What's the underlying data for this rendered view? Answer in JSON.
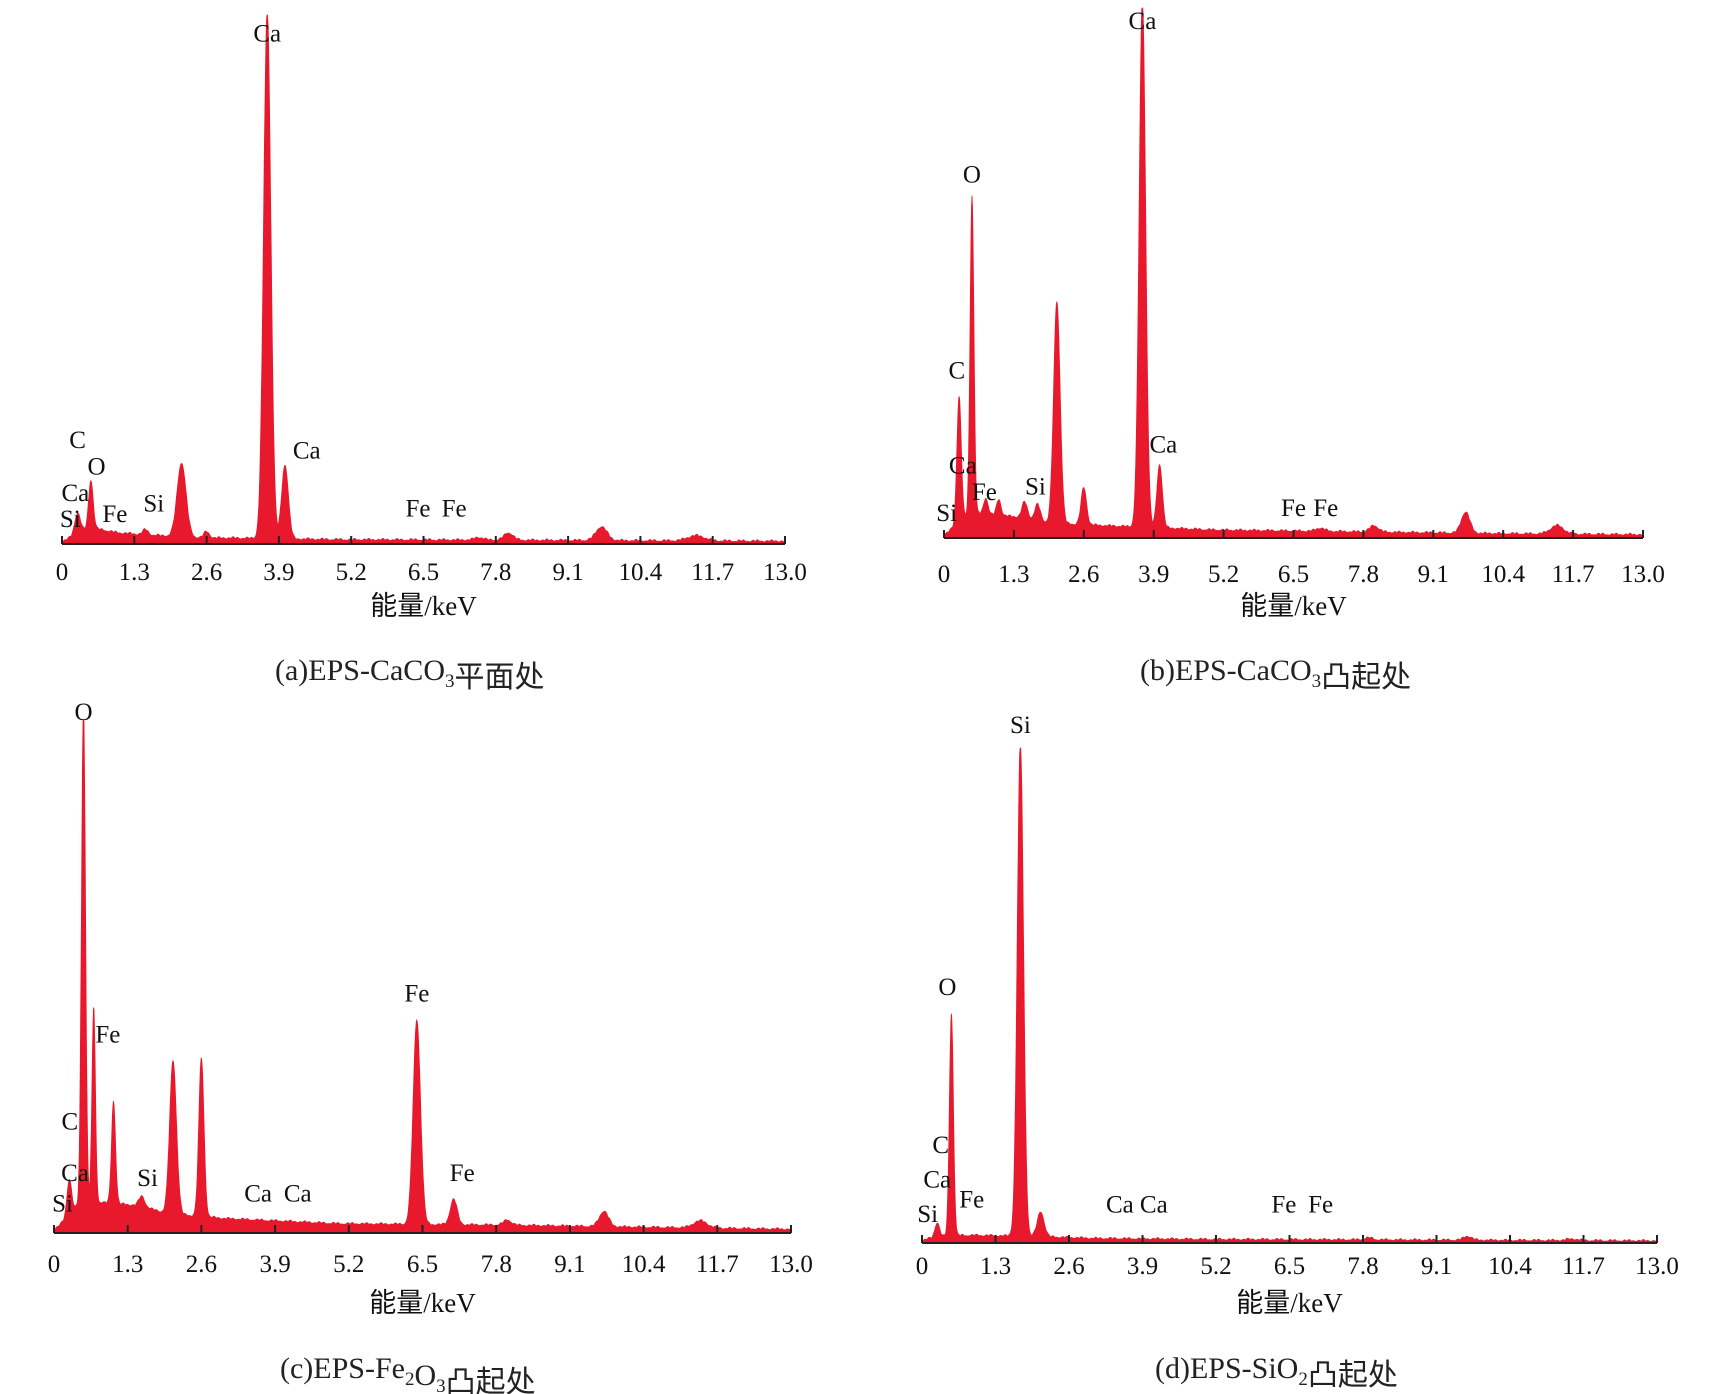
{
  "chart_data": [
    {
      "type": "area",
      "caption": {
        "prefix": "(a)EPS-CaCO",
        "sub": "3",
        "suffix": "平面处"
      },
      "xlabel": "能量/keV",
      "xlim": [
        0,
        13.0
      ],
      "xticks": [
        0,
        1.3,
        2.6,
        3.9,
        5.2,
        6.5,
        7.8,
        9.1,
        10.4,
        11.7,
        13.0
      ],
      "tick_labels": [
        "0",
        "1.3",
        "2.6",
        "3.9",
        "5.2",
        "6.5",
        "7.8",
        "9.1",
        "10.4",
        "11.7",
        "13.0"
      ],
      "color": "#e8192c",
      "baseline": [
        [
          0,
          0.002
        ],
        [
          0.1,
          0.006
        ],
        [
          0.5,
          0.028
        ],
        [
          1.0,
          0.018
        ],
        [
          1.5,
          0.014
        ],
        [
          2.6,
          0.008
        ],
        [
          3.0,
          0.008
        ],
        [
          5.0,
          0.005
        ],
        [
          8.0,
          0.004
        ],
        [
          10.4,
          0.003
        ],
        [
          13.0,
          0.002
        ]
      ],
      "peaks": [
        {
          "x": 0.28,
          "y": 0.04,
          "w": 0.05
        },
        {
          "x": 0.52,
          "y": 0.09,
          "w": 0.04
        },
        {
          "x": 1.5,
          "y": 0.01,
          "w": 0.05
        },
        {
          "x": 2.15,
          "y": 0.14,
          "w": 0.08
        },
        {
          "x": 2.6,
          "y": 0.012,
          "w": 0.05
        },
        {
          "x": 3.69,
          "y": 1.0,
          "w": 0.065
        },
        {
          "x": 4.01,
          "y": 0.14,
          "w": 0.06
        },
        {
          "x": 7.5,
          "y": 0.005,
          "w": 0.08
        },
        {
          "x": 8.03,
          "y": 0.014,
          "w": 0.08
        },
        {
          "x": 9.7,
          "y": 0.026,
          "w": 0.1
        },
        {
          "x": 11.4,
          "y": 0.01,
          "w": 0.15
        }
      ],
      "annotations": [
        {
          "text": "C",
          "x": 0.28,
          "y": 0.18
        },
        {
          "text": "O",
          "x": 0.62,
          "y": 0.13
        },
        {
          "text": "Ca",
          "x": 0.24,
          "y": 0.08
        },
        {
          "text": "Si",
          "x": 0.15,
          "y": 0.03
        },
        {
          "text": "Fe",
          "x": 0.95,
          "y": 0.04
        },
        {
          "text": "Si",
          "x": 1.65,
          "y": 0.06
        },
        {
          "text": "Ca",
          "x": 3.69,
          "y": 0.95
        },
        {
          "text": "Ca",
          "x": 4.4,
          "y": 0.16
        },
        {
          "text": "Fe",
          "x": 6.4,
          "y": 0.05
        },
        {
          "text": "Fe",
          "x": 7.05,
          "y": 0.05
        }
      ]
    },
    {
      "type": "area",
      "caption": {
        "prefix": "(b)EPS-CaCO",
        "sub": "3",
        "suffix": "凸起处"
      },
      "xlabel": "能量/keV",
      "xlim": [
        0,
        13.0
      ],
      "xticks": [
        0,
        1.3,
        2.6,
        3.9,
        5.2,
        6.5,
        7.8,
        9.1,
        10.4,
        11.7,
        13.0
      ],
      "tick_labels": [
        "0",
        "1.3",
        "2.6",
        "3.9",
        "5.2",
        "6.5",
        "7.8",
        "9.1",
        "10.4",
        "11.7",
        "13.0"
      ],
      "color": "#e8192c",
      "baseline": [
        [
          0,
          0.003
        ],
        [
          0.1,
          0.01
        ],
        [
          0.5,
          0.045
        ],
        [
          1.0,
          0.04
        ],
        [
          1.5,
          0.035
        ],
        [
          2.0,
          0.025
        ],
        [
          3.0,
          0.02
        ],
        [
          5.0,
          0.012
        ],
        [
          8.0,
          0.008
        ],
        [
          10.4,
          0.005
        ],
        [
          13.0,
          0.003
        ]
      ],
      "peaks": [
        {
          "x": 0.28,
          "y": 0.24,
          "w": 0.04
        },
        {
          "x": 0.52,
          "y": 0.6,
          "w": 0.035
        },
        {
          "x": 0.78,
          "y": 0.03,
          "w": 0.04
        },
        {
          "x": 1.02,
          "y": 0.03,
          "w": 0.04
        },
        {
          "x": 1.5,
          "y": 0.03,
          "w": 0.05
        },
        {
          "x": 1.74,
          "y": 0.03,
          "w": 0.05
        },
        {
          "x": 2.1,
          "y": 0.42,
          "w": 0.06
        },
        {
          "x": 2.6,
          "y": 0.07,
          "w": 0.05
        },
        {
          "x": 3.69,
          "y": 1.0,
          "w": 0.06
        },
        {
          "x": 4.01,
          "y": 0.12,
          "w": 0.05
        },
        {
          "x": 7.0,
          "y": 0.006,
          "w": 0.08
        },
        {
          "x": 8.0,
          "y": 0.012,
          "w": 0.08
        },
        {
          "x": 9.7,
          "y": 0.04,
          "w": 0.08
        },
        {
          "x": 11.4,
          "y": 0.016,
          "w": 0.12
        }
      ],
      "annotations": [
        {
          "text": "O",
          "x": 0.52,
          "y": 0.67
        },
        {
          "text": "C",
          "x": 0.24,
          "y": 0.3
        },
        {
          "text": "Ca",
          "x": 0.35,
          "y": 0.12
        },
        {
          "text": "Fe",
          "x": 0.75,
          "y": 0.07
        },
        {
          "text": "Si",
          "x": 0.05,
          "y": 0.03
        },
        {
          "text": "Si",
          "x": 1.7,
          "y": 0.08
        },
        {
          "text": "Ca",
          "x": 3.69,
          "y": 0.96
        },
        {
          "text": "Ca",
          "x": 4.08,
          "y": 0.16
        },
        {
          "text": "Fe",
          "x": 6.5,
          "y": 0.04
        },
        {
          "text": "Fe",
          "x": 7.1,
          "y": 0.04
        }
      ]
    },
    {
      "type": "area",
      "caption": {
        "prefix": "(c)EPS-Fe",
        "sub": "2",
        "mid": "O",
        "sub2": "3",
        "suffix": "凸起处"
      },
      "xlabel": "能量/keV",
      "xlim": [
        0,
        13.0
      ],
      "xticks": [
        0,
        1.3,
        2.6,
        3.9,
        5.2,
        6.5,
        7.8,
        9.1,
        10.4,
        11.7,
        13.0
      ],
      "tick_labels": [
        "0",
        "1.3",
        "2.6",
        "3.9",
        "5.2",
        "6.5",
        "7.8",
        "9.1",
        "10.4",
        "11.7",
        "13.0"
      ],
      "color": "#e8192c",
      "baseline": [
        [
          0,
          0.004
        ],
        [
          0.1,
          0.012
        ],
        [
          0.5,
          0.06
        ],
        [
          1.0,
          0.055
        ],
        [
          1.5,
          0.05
        ],
        [
          2.0,
          0.035
        ],
        [
          3.0,
          0.025
        ],
        [
          5.0,
          0.015
        ],
        [
          8.0,
          0.012
        ],
        [
          10.4,
          0.008
        ],
        [
          13.0,
          0.004
        ]
      ],
      "peaks": [
        {
          "x": 0.27,
          "y": 0.07,
          "w": 0.04
        },
        {
          "x": 0.52,
          "y": 0.97,
          "w": 0.035
        },
        {
          "x": 0.7,
          "y": 0.38,
          "w": 0.03
        },
        {
          "x": 1.05,
          "y": 0.2,
          "w": 0.035
        },
        {
          "x": 1.55,
          "y": 0.02,
          "w": 0.05
        },
        {
          "x": 2.1,
          "y": 0.3,
          "w": 0.06
        },
        {
          "x": 2.6,
          "y": 0.31,
          "w": 0.045
        },
        {
          "x": 6.4,
          "y": 0.4,
          "w": 0.065
        },
        {
          "x": 7.05,
          "y": 0.05,
          "w": 0.06
        },
        {
          "x": 8.0,
          "y": 0.01,
          "w": 0.07
        },
        {
          "x": 9.7,
          "y": 0.03,
          "w": 0.08
        },
        {
          "x": 11.4,
          "y": 0.014,
          "w": 0.12
        }
      ],
      "annotations": [
        {
          "text": "O",
          "x": 0.52,
          "y": 1.0
        },
        {
          "text": "Fe",
          "x": 0.95,
          "y": 0.37
        },
        {
          "text": "C",
          "x": 0.28,
          "y": 0.2
        },
        {
          "text": "Ca",
          "x": 0.37,
          "y": 0.1
        },
        {
          "text": "Si",
          "x": 0.15,
          "y": 0.04
        },
        {
          "text": "Si",
          "x": 1.65,
          "y": 0.09
        },
        {
          "text": "Ca",
          "x": 3.6,
          "y": 0.06
        },
        {
          "text": "Ca",
          "x": 4.3,
          "y": 0.06
        },
        {
          "text": "Fe",
          "x": 6.4,
          "y": 0.45
        },
        {
          "text": "Fe",
          "x": 7.2,
          "y": 0.1
        }
      ]
    },
    {
      "type": "area",
      "caption": {
        "prefix": "(d)EPS-SiO",
        "sub": "2",
        "suffix": "凸起处"
      },
      "xlabel": "能量/keV",
      "xlim": [
        0,
        13.0
      ],
      "xticks": [
        0,
        1.3,
        2.6,
        3.9,
        5.2,
        6.5,
        7.8,
        9.1,
        10.4,
        11.7,
        13.0
      ],
      "tick_labels": [
        "0",
        "1.3",
        "2.6",
        "3.9",
        "5.2",
        "6.5",
        "7.8",
        "9.1",
        "10.4",
        "11.7",
        "13.0"
      ],
      "color": "#e8192c",
      "baseline": [
        [
          0,
          0.002
        ],
        [
          0.1,
          0.005
        ],
        [
          0.5,
          0.012
        ],
        [
          1.0,
          0.012
        ],
        [
          2.0,
          0.01
        ],
        [
          3.0,
          0.006
        ],
        [
          5.0,
          0.004
        ],
        [
          8.0,
          0.003
        ],
        [
          13.0,
          0.001
        ]
      ],
      "peaks": [
        {
          "x": 0.27,
          "y": 0.03,
          "w": 0.04
        },
        {
          "x": 0.52,
          "y": 0.45,
          "w": 0.035
        },
        {
          "x": 1.74,
          "y": 1.0,
          "w": 0.055
        },
        {
          "x": 2.1,
          "y": 0.05,
          "w": 0.06
        },
        {
          "x": 7.9,
          "y": 0.004,
          "w": 0.07
        },
        {
          "x": 9.65,
          "y": 0.008,
          "w": 0.07
        },
        {
          "x": 11.5,
          "y": 0.003,
          "w": 0.1
        }
      ],
      "annotations": [
        {
          "text": "Si",
          "x": 1.74,
          "y": 1.03
        },
        {
          "text": "O",
          "x": 0.45,
          "y": 0.5
        },
        {
          "text": "C",
          "x": 0.33,
          "y": 0.18
        },
        {
          "text": "Ca",
          "x": 0.27,
          "y": 0.11
        },
        {
          "text": "Fe",
          "x": 0.88,
          "y": 0.07
        },
        {
          "text": "Si",
          "x": 0.1,
          "y": 0.04
        },
        {
          "text": "Ca",
          "x": 3.5,
          "y": 0.06
        },
        {
          "text": "Ca",
          "x": 4.1,
          "y": 0.06
        },
        {
          "text": "Fe",
          "x": 6.4,
          "y": 0.06
        },
        {
          "text": "Fe",
          "x": 7.05,
          "y": 0.06
        }
      ]
    }
  ]
}
